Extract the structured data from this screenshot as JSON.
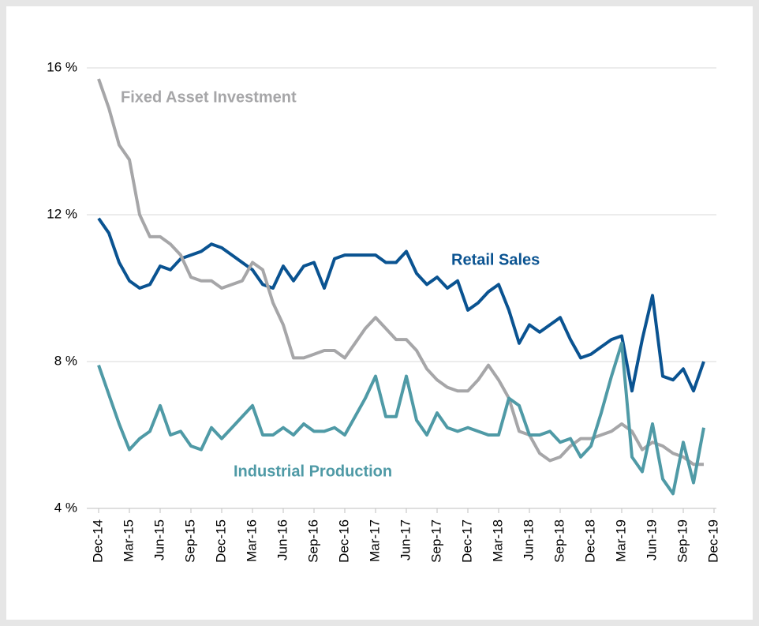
{
  "chart_data": {
    "type": "line",
    "categories": [
      "Dec-14",
      null,
      null,
      "Mar-15",
      null,
      null,
      "Jun-15",
      null,
      null,
      "Sep-15",
      null,
      null,
      "Dec-15",
      null,
      null,
      "Mar-16",
      null,
      null,
      "Jun-16",
      null,
      null,
      "Sep-16",
      null,
      null,
      "Dec-16",
      null,
      null,
      "Mar-17",
      null,
      null,
      "Jun-17",
      null,
      null,
      "Sep-17",
      null,
      null,
      "Dec-17",
      null,
      null,
      "Mar-18",
      null,
      null,
      "Jun-18",
      null,
      null,
      "Sep-18",
      null,
      null,
      "Dec-18",
      null,
      null,
      "Mar-19",
      null,
      null,
      "Jun-19",
      null,
      null,
      "Sep-19",
      null,
      null,
      "Dec-19"
    ],
    "series": [
      {
        "name": "Retail Sales",
        "color": "#0a5391",
        "values": [
          11.9,
          11.5,
          10.7,
          10.2,
          10.0,
          10.1,
          10.6,
          10.5,
          10.8,
          10.9,
          11.0,
          11.2,
          11.1,
          10.9,
          10.7,
          10.5,
          10.1,
          10.0,
          10.6,
          10.2,
          10.6,
          10.7,
          10.0,
          10.8,
          10.9,
          10.9,
          10.9,
          10.9,
          10.7,
          10.7,
          11.0,
          10.4,
          10.1,
          10.3,
          10.0,
          10.2,
          9.4,
          9.6,
          9.9,
          10.1,
          9.4,
          8.5,
          9.0,
          8.8,
          9.0,
          9.2,
          8.6,
          8.1,
          8.2,
          8.4,
          8.6,
          8.7,
          7.2,
          8.6,
          9.8,
          7.6,
          7.5,
          7.8,
          7.2,
          8.0,
          null
        ]
      },
      {
        "name": "Fixed Asset Investment",
        "color": "#a6a6a8",
        "values": [
          15.7,
          14.9,
          13.9,
          13.5,
          12.0,
          11.4,
          11.4,
          11.2,
          10.9,
          10.3,
          10.2,
          10.2,
          10.0,
          10.1,
          10.2,
          10.7,
          10.5,
          9.6,
          9.0,
          8.1,
          8.1,
          8.2,
          8.3,
          8.3,
          8.1,
          8.5,
          8.9,
          9.2,
          8.9,
          8.6,
          8.6,
          8.3,
          7.8,
          7.5,
          7.3,
          7.2,
          7.2,
          7.5,
          7.9,
          7.5,
          7.0,
          6.1,
          6.0,
          5.5,
          5.3,
          5.4,
          5.7,
          5.9,
          5.9,
          6.0,
          6.1,
          6.3,
          6.1,
          5.6,
          5.8,
          5.7,
          5.5,
          5.4,
          5.2,
          5.2,
          null
        ]
      },
      {
        "name": "Industrial Production",
        "color": "#4f9aa6",
        "values": [
          7.9,
          7.1,
          6.3,
          5.6,
          5.9,
          6.1,
          6.8,
          6.0,
          6.1,
          5.7,
          5.6,
          6.2,
          5.9,
          6.2,
          6.5,
          6.8,
          6.0,
          6.0,
          6.2,
          6.0,
          6.3,
          6.1,
          6.1,
          6.2,
          6.0,
          6.5,
          7.0,
          7.6,
          6.5,
          6.5,
          7.6,
          6.4,
          6.0,
          6.6,
          6.2,
          6.1,
          6.2,
          6.1,
          6.0,
          6.0,
          7.0,
          6.8,
          6.0,
          6.0,
          6.1,
          5.8,
          5.9,
          5.4,
          5.7,
          6.6,
          7.6,
          8.5,
          5.4,
          5.0,
          6.3,
          4.8,
          4.4,
          5.8,
          4.7,
          6.2,
          null
        ]
      }
    ],
    "ylim": [
      4,
      16
    ],
    "yticks": [
      {
        "value": 4,
        "label": "4 %"
      },
      {
        "value": 8,
        "label": "8 %"
      },
      {
        "value": 12,
        "label": "12 %"
      },
      {
        "value": 16,
        "label": "16 %"
      }
    ],
    "grid": true
  }
}
